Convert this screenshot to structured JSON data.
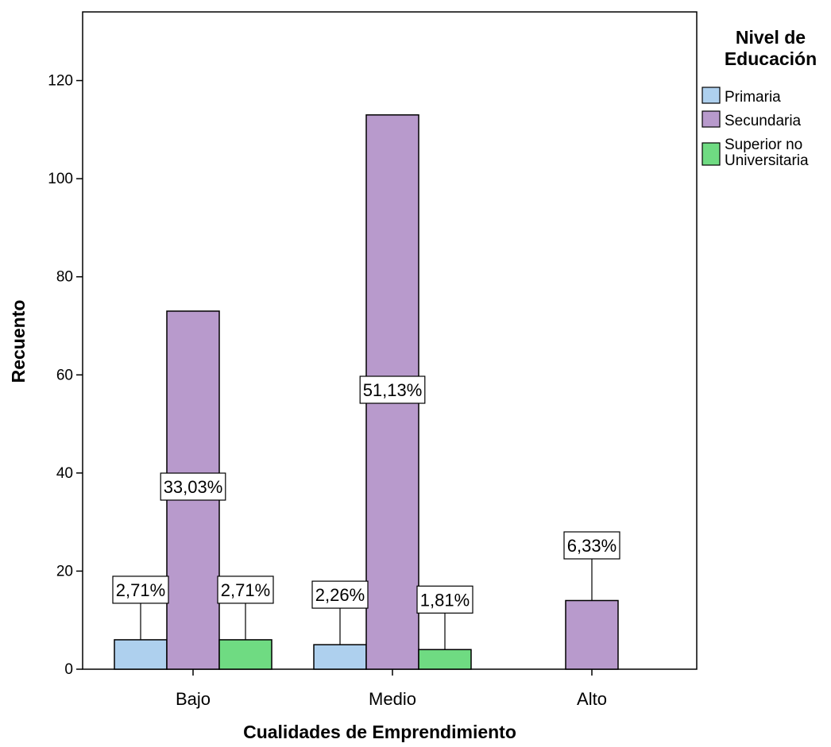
{
  "chart_data": {
    "type": "bar",
    "categories": [
      "Bajo",
      "Medio",
      "Alto"
    ],
    "series": [
      {
        "name": "Primaria",
        "color": "#aed0ee",
        "values": [
          6,
          5,
          null
        ],
        "labels": [
          "2,71%",
          "2,26%",
          ""
        ]
      },
      {
        "name": "Secundaria",
        "color": "#b89acc",
        "values": [
          73,
          113,
          14
        ],
        "labels": [
          "33,03%",
          "51,13%",
          "6,33%"
        ]
      },
      {
        "name": "Superior no Universitaria",
        "name_lines": [
          "Superior no",
          "Universitaria"
        ],
        "color": "#6fdb82",
        "values": [
          6,
          4,
          null
        ],
        "labels": [
          "2,71%",
          "1,81%",
          ""
        ]
      }
    ],
    "xlabel": "Cualidades de Emprendimiento",
    "ylabel": "Recuento",
    "ylim": [
      0,
      120
    ],
    "ymax_display": 134,
    "yticks": [
      0,
      20,
      40,
      60,
      80,
      100,
      120
    ],
    "legend": {
      "title_lines": [
        "Nivel de",
        "Educación"
      ],
      "position": "right"
    },
    "grid": false
  }
}
